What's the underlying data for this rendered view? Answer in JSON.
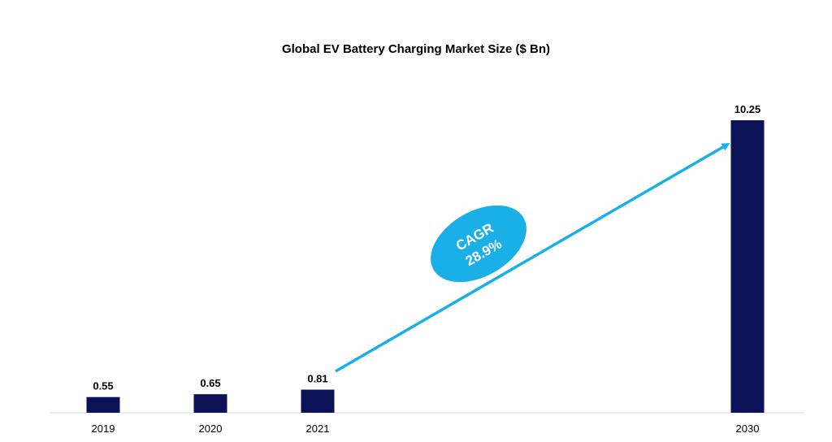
{
  "chart_data": {
    "type": "bar",
    "title": "Global EV Battery Charging Market Size ($ Bn)",
    "xlabel": "",
    "ylabel": "",
    "categories": [
      "2019",
      "2020",
      "2021",
      "2030"
    ],
    "values": [
      0.55,
      0.65,
      0.81,
      10.25
    ],
    "value_labels": [
      "0.55",
      "0.65",
      "0.81",
      "10.25"
    ],
    "bar_color": "#0b1257",
    "grid": false,
    "legend": "none",
    "annotation": {
      "line1": "CAGR",
      "line2": "28.9%",
      "color": "#1aafe6"
    }
  }
}
